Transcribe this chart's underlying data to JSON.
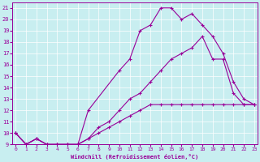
{
  "xlabel": "Windchill (Refroidissement éolien,°C)",
  "background_color": "#c8eef0",
  "line_color": "#990099",
  "ylim": [
    9,
    21.5
  ],
  "xlim": [
    -0.3,
    23.3
  ],
  "yticks": [
    9,
    10,
    11,
    12,
    13,
    14,
    15,
    16,
    17,
    18,
    19,
    20,
    21
  ],
  "xticks": [
    0,
    1,
    2,
    3,
    4,
    5,
    6,
    7,
    8,
    9,
    10,
    11,
    12,
    13,
    14,
    15,
    16,
    17,
    18,
    19,
    20,
    21,
    22,
    23
  ],
  "line1_x": [
    0,
    1,
    2,
    3,
    4,
    5,
    6,
    7,
    8,
    9,
    10,
    11,
    12,
    13,
    14,
    15,
    16,
    17,
    18,
    19,
    20,
    21,
    22,
    23
  ],
  "line1_y": [
    10.0,
    9.0,
    9.5,
    9.0,
    9.0,
    9.0,
    9.0,
    9.5,
    10.0,
    10.5,
    11.0,
    11.5,
    12.0,
    12.5,
    12.5,
    12.5,
    12.5,
    12.5,
    12.5,
    12.5,
    12.5,
    12.5,
    12.5,
    12.5
  ],
  "line2_x": [
    0,
    1,
    2,
    3,
    4,
    5,
    6,
    7,
    10,
    11,
    12,
    13,
    14,
    15,
    16,
    17,
    18,
    19,
    20,
    21,
    22,
    23
  ],
  "line2_y": [
    10.0,
    9.0,
    9.5,
    9.0,
    9.0,
    9.0,
    9.0,
    12.0,
    15.5,
    16.5,
    19.0,
    19.5,
    21.0,
    21.0,
    20.0,
    20.5,
    19.5,
    18.5,
    17.0,
    14.5,
    13.0,
    12.5
  ],
  "line3_x": [
    0,
    1,
    2,
    3,
    4,
    5,
    6,
    7,
    8,
    9,
    10,
    11,
    12,
    13,
    14,
    15,
    16,
    17,
    18,
    19,
    20,
    21,
    22,
    23
  ],
  "line3_y": [
    10.0,
    9.0,
    9.5,
    9.0,
    9.0,
    9.0,
    9.0,
    9.5,
    10.5,
    11.0,
    12.0,
    13.0,
    13.5,
    14.5,
    15.5,
    16.5,
    17.0,
    17.5,
    18.5,
    16.5,
    16.5,
    13.5,
    12.5,
    12.5
  ]
}
